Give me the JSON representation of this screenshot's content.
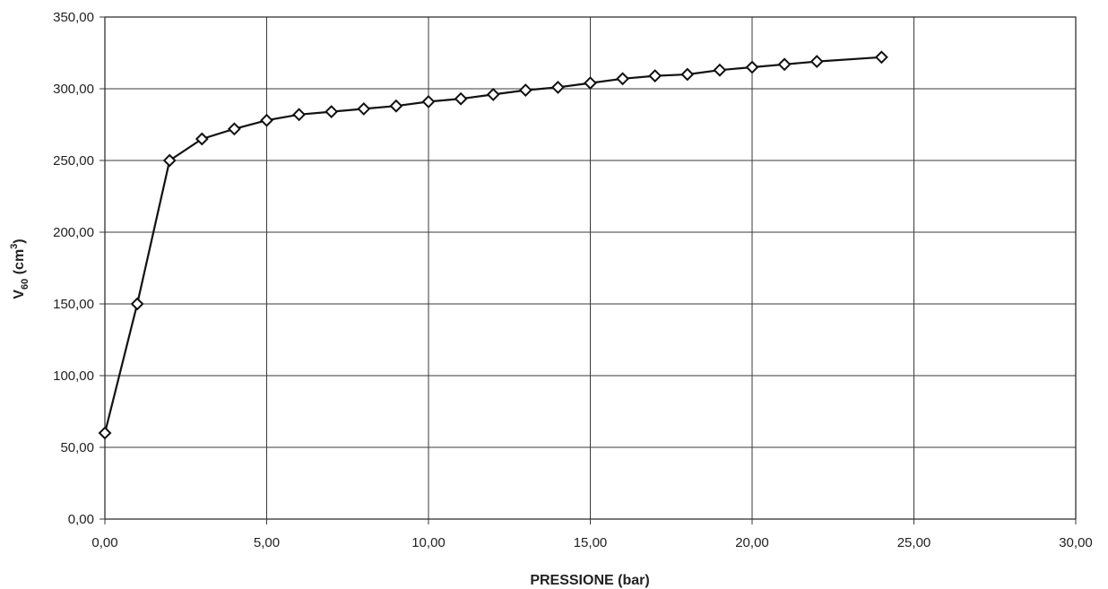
{
  "chart_data": {
    "type": "scatter",
    "title": "",
    "xlabel": "PRESSIONE (bar)",
    "ylabel": {
      "main": "V",
      "sub": "60",
      "unit_open": " (cm",
      "unit_sup": "3",
      "unit_close": ")"
    },
    "xlim": [
      0,
      30
    ],
    "ylim": [
      0,
      350
    ],
    "xticks": [
      0,
      5,
      10,
      15,
      20,
      25,
      30
    ],
    "yticks": [
      0,
      50,
      100,
      150,
      200,
      250,
      300,
      350
    ],
    "xtick_labels": [
      "0,00",
      "5,00",
      "10,00",
      "15,00",
      "20,00",
      "25,00",
      "30,00"
    ],
    "ytick_labels": [
      "0,00",
      "50,00",
      "100,00",
      "150,00",
      "200,00",
      "250,00",
      "300,00",
      "350,00"
    ],
    "grid": true,
    "legend": "none",
    "marker": "diamond",
    "line_color": "#111111",
    "series": [
      {
        "x": [
          0,
          1,
          2,
          3,
          4,
          5,
          6,
          7,
          8,
          9,
          10,
          11,
          12,
          13,
          14,
          15,
          16,
          17,
          18,
          19,
          20,
          21,
          22,
          24
        ],
        "y": [
          60,
          150,
          250,
          265,
          272,
          278,
          282,
          284,
          286,
          288,
          291,
          293,
          296,
          299,
          301,
          304,
          307,
          309,
          310,
          313,
          315,
          317,
          319,
          322
        ]
      }
    ]
  }
}
